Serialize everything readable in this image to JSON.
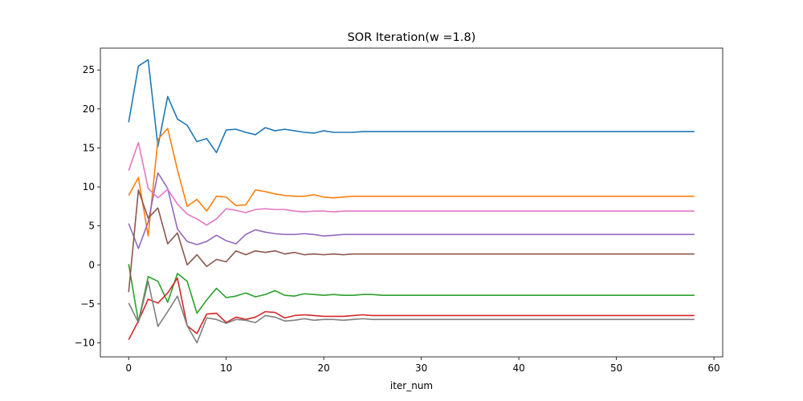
{
  "chart_data": {
    "type": "line",
    "title": "SOR Iteration(w =1.8)",
    "xlabel": "iter_num",
    "ylabel": "",
    "xlim": [
      -2.9,
      60.9
    ],
    "ylim": [
      -11.8,
      27.8
    ],
    "xticks": [
      0,
      10,
      20,
      30,
      40,
      50,
      60
    ],
    "yticks": [
      -10,
      -5,
      0,
      5,
      10,
      15,
      20,
      25
    ],
    "grid": false,
    "series": [
      {
        "color": "#1f77b4",
        "y": [
          18.3,
          25.5,
          26.3,
          15.2,
          21.6,
          18.7,
          17.9,
          15.8,
          16.2,
          14.4,
          17.3,
          17.4,
          17.0,
          16.7,
          17.6,
          17.2,
          17.4,
          17.2,
          17.0,
          16.9,
          17.2,
          17.0,
          17.0,
          17.0,
          17.1,
          17.1,
          17.1,
          17.1,
          17.1,
          17.1,
          17.1,
          17.1,
          17.1,
          17.1,
          17.1,
          17.1,
          17.1,
          17.1,
          17.1,
          17.1,
          17.1,
          17.1,
          17.1,
          17.1,
          17.1,
          17.1,
          17.1,
          17.1,
          17.1,
          17.1,
          17.1,
          17.1,
          17.1,
          17.1,
          17.1,
          17.1,
          17.1,
          17.1,
          17.1
        ]
      },
      {
        "color": "#ff7f0e",
        "y": [
          8.9,
          11.2,
          3.7,
          16.1,
          17.5,
          12.2,
          7.5,
          8.4,
          6.9,
          8.8,
          8.7,
          7.6,
          7.7,
          9.6,
          9.4,
          9.1,
          8.9,
          8.8,
          8.8,
          9.0,
          8.7,
          8.6,
          8.7,
          8.8,
          8.8,
          8.8,
          8.8,
          8.8,
          8.8,
          8.8,
          8.8,
          8.8,
          8.8,
          8.8,
          8.8,
          8.8,
          8.8,
          8.8,
          8.8,
          8.8,
          8.8,
          8.8,
          8.8,
          8.8,
          8.8,
          8.8,
          8.8,
          8.8,
          8.8,
          8.8,
          8.8,
          8.8,
          8.8,
          8.8,
          8.8,
          8.8,
          8.8,
          8.8,
          8.8
        ]
      },
      {
        "color": "#2ca02c",
        "y": [
          0.1,
          -7.3,
          -1.5,
          -2.1,
          -4.8,
          -1.1,
          -2.1,
          -6.2,
          -4.5,
          -3.0,
          -4.2,
          -4.0,
          -3.6,
          -4.1,
          -3.8,
          -3.3,
          -3.9,
          -4.0,
          -3.7,
          -3.8,
          -3.9,
          -3.8,
          -3.9,
          -3.9,
          -3.8,
          -3.8,
          -3.9,
          -3.9,
          -3.9,
          -3.9,
          -3.9,
          -3.9,
          -3.9,
          -3.9,
          -3.9,
          -3.9,
          -3.9,
          -3.9,
          -3.9,
          -3.9,
          -3.9,
          -3.9,
          -3.9,
          -3.9,
          -3.9,
          -3.9,
          -3.9,
          -3.9,
          -3.9,
          -3.9,
          -3.9,
          -3.9,
          -3.9,
          -3.9,
          -3.9,
          -3.9,
          -3.9,
          -3.9,
          -3.9
        ]
      },
      {
        "color": "#d62728",
        "y": [
          -9.6,
          -7.2,
          -4.4,
          -4.9,
          -3.6,
          -1.7,
          -7.8,
          -8.8,
          -6.3,
          -6.2,
          -7.4,
          -6.7,
          -7.0,
          -6.7,
          -6.0,
          -6.1,
          -6.8,
          -6.5,
          -6.4,
          -6.5,
          -6.6,
          -6.6,
          -6.6,
          -6.5,
          -6.4,
          -6.5,
          -6.5,
          -6.5,
          -6.5,
          -6.5,
          -6.5,
          -6.5,
          -6.5,
          -6.5,
          -6.5,
          -6.5,
          -6.5,
          -6.5,
          -6.5,
          -6.5,
          -6.5,
          -6.5,
          -6.5,
          -6.5,
          -6.5,
          -6.5,
          -6.5,
          -6.5,
          -6.5,
          -6.5,
          -6.5,
          -6.5,
          -6.5,
          -6.5,
          -6.5,
          -6.5,
          -6.5,
          -6.5,
          -6.5
        ]
      },
      {
        "color": "#9467bd",
        "y": [
          5.3,
          2.1,
          5.5,
          11.8,
          9.8,
          4.6,
          3.0,
          2.6,
          3.0,
          3.8,
          3.1,
          2.7,
          3.9,
          4.5,
          4.2,
          4.0,
          3.9,
          3.9,
          4.0,
          3.9,
          3.7,
          3.8,
          3.9,
          3.9,
          3.9,
          3.9,
          3.9,
          3.9,
          3.9,
          3.9,
          3.9,
          3.9,
          3.9,
          3.9,
          3.9,
          3.9,
          3.9,
          3.9,
          3.9,
          3.9,
          3.9,
          3.9,
          3.9,
          3.9,
          3.9,
          3.9,
          3.9,
          3.9,
          3.9,
          3.9,
          3.9,
          3.9,
          3.9,
          3.9,
          3.9,
          3.9,
          3.9,
          3.9,
          3.9
        ]
      },
      {
        "color": "#8c564b",
        "y": [
          -3.5,
          9.6,
          6.0,
          7.3,
          2.7,
          4.1,
          0.0,
          1.3,
          -0.2,
          0.7,
          0.4,
          1.8,
          1.3,
          1.8,
          1.6,
          1.8,
          1.4,
          1.6,
          1.3,
          1.4,
          1.3,
          1.4,
          1.3,
          1.4,
          1.4,
          1.4,
          1.4,
          1.4,
          1.4,
          1.4,
          1.4,
          1.4,
          1.4,
          1.4,
          1.4,
          1.4,
          1.4,
          1.4,
          1.4,
          1.4,
          1.4,
          1.4,
          1.4,
          1.4,
          1.4,
          1.4,
          1.4,
          1.4,
          1.4,
          1.4,
          1.4,
          1.4,
          1.4,
          1.4,
          1.4,
          1.4,
          1.4,
          1.4,
          1.4
        ]
      },
      {
        "color": "#e377c2",
        "y": [
          12.1,
          15.7,
          9.8,
          8.6,
          9.7,
          7.8,
          6.5,
          5.9,
          5.1,
          5.9,
          7.2,
          7.0,
          6.7,
          7.1,
          7.2,
          7.1,
          7.1,
          6.9,
          6.8,
          6.9,
          6.9,
          6.8,
          6.9,
          6.9,
          6.9,
          6.9,
          6.9,
          6.9,
          6.9,
          6.9,
          6.9,
          6.9,
          6.9,
          6.9,
          6.9,
          6.9,
          6.9,
          6.9,
          6.9,
          6.9,
          6.9,
          6.9,
          6.9,
          6.9,
          6.9,
          6.9,
          6.9,
          6.9,
          6.9,
          6.9,
          6.9,
          6.9,
          6.9,
          6.9,
          6.9,
          6.9,
          6.9,
          6.9,
          6.9
        ]
      },
      {
        "color": "#7f7f7f",
        "y": [
          -4.9,
          -7.4,
          -2.1,
          -7.9,
          -6.0,
          -4.0,
          -7.8,
          -10.0,
          -6.8,
          -7.0,
          -7.5,
          -7.0,
          -7.1,
          -7.4,
          -6.5,
          -6.7,
          -7.2,
          -7.1,
          -6.9,
          -7.1,
          -7.0,
          -7.0,
          -7.1,
          -7.0,
          -6.9,
          -7.0,
          -7.0,
          -7.0,
          -7.0,
          -7.0,
          -7.0,
          -7.0,
          -7.0,
          -7.0,
          -7.0,
          -7.0,
          -7.0,
          -7.0,
          -7.0,
          -7.0,
          -7.0,
          -7.0,
          -7.0,
          -7.0,
          -7.0,
          -7.0,
          -7.0,
          -7.0,
          -7.0,
          -7.0,
          -7.0,
          -7.0,
          -7.0,
          -7.0,
          -7.0,
          -7.0,
          -7.0,
          -7.0,
          -7.0
        ]
      }
    ]
  }
}
